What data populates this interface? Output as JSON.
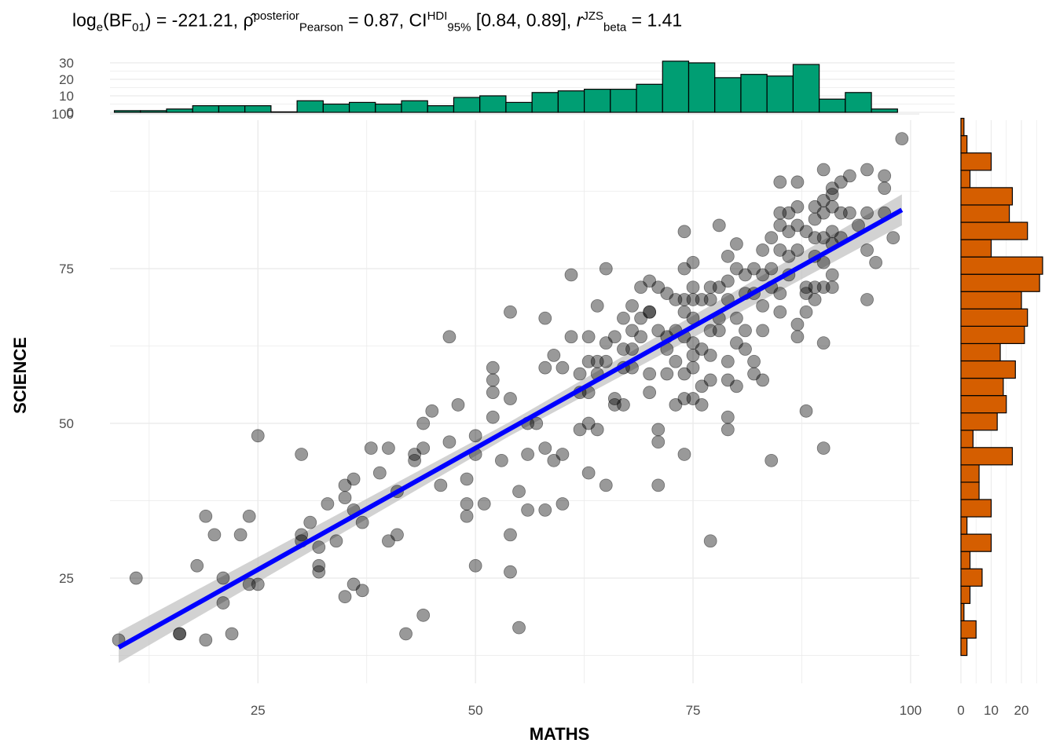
{
  "title": {
    "bf_prefix": "log",
    "bf_sub_e": "e",
    "bf_open": "(BF",
    "bf_sub_01": "01",
    "bf_close": ") = -221.21, ",
    "rho": "ρ̂",
    "rho_sup": "posterior",
    "rho_sub": "Pearson",
    "rho_val": " = 0.87, CI",
    "ci_sup": "HDI",
    "ci_sub": "95%",
    "ci_val": " [0.84, 0.89], ",
    "r": "r",
    "r_sup": "JZS",
    "r_sub": "beta",
    "r_val": " = 1.41"
  },
  "colors": {
    "points": "#000000",
    "fit_line": "#0000ff",
    "ci_band": "#bfbfbf",
    "top_hist": "#009e73",
    "right_hist": "#d55e00",
    "grid": "#ebebeb"
  },
  "chart_data": [
    {
      "type": "scatter",
      "xlabel": "MATHS",
      "ylabel": "SCIENCE",
      "xlim": [
        8,
        101
      ],
      "ylim": [
        8,
        99
      ],
      "xticks": [
        25,
        50,
        75,
        100
      ],
      "yticks": [
        25,
        50,
        75,
        100
      ],
      "tick_labels_x": [
        "25",
        "50",
        "75",
        "100"
      ],
      "tick_labels_y": [
        "25",
        "50",
        "75",
        "100"
      ],
      "grid": true,
      "fit": {
        "method": "lm",
        "x": [
          9,
          99
        ],
        "y": [
          13.8,
          84.5
        ],
        "band_half_width": 2.5
      },
      "points": [
        [
          9,
          15
        ],
        [
          11,
          25
        ],
        [
          16,
          16
        ],
        [
          16,
          16
        ],
        [
          18,
          27
        ],
        [
          19,
          35
        ],
        [
          19,
          15
        ],
        [
          20,
          32
        ],
        [
          21,
          25
        ],
        [
          21,
          21
        ],
        [
          22,
          16
        ],
        [
          23,
          32
        ],
        [
          24,
          35
        ],
        [
          24,
          24
        ],
        [
          25,
          24
        ],
        [
          25,
          48
        ],
        [
          30,
          45
        ],
        [
          30,
          32
        ],
        [
          30,
          31
        ],
        [
          31,
          34
        ],
        [
          32,
          27
        ],
        [
          32,
          26
        ],
        [
          32,
          30
        ],
        [
          33,
          37
        ],
        [
          34,
          31
        ],
        [
          35,
          38
        ],
        [
          35,
          40
        ],
        [
          35,
          22
        ],
        [
          36,
          41
        ],
        [
          36,
          24
        ],
        [
          36,
          36
        ],
        [
          37,
          34
        ],
        [
          37,
          23
        ],
        [
          38,
          46
        ],
        [
          39,
          42
        ],
        [
          40,
          46
        ],
        [
          40,
          31
        ],
        [
          41,
          39
        ],
        [
          41,
          32
        ],
        [
          42,
          16
        ],
        [
          43,
          44
        ],
        [
          43,
          45
        ],
        [
          44,
          19
        ],
        [
          44,
          50
        ],
        [
          44,
          46
        ],
        [
          45,
          52
        ],
        [
          46,
          40
        ],
        [
          47,
          47
        ],
        [
          47,
          64
        ],
        [
          48,
          53
        ],
        [
          49,
          37
        ],
        [
          49,
          35
        ],
        [
          49,
          41
        ],
        [
          50,
          45
        ],
        [
          50,
          27
        ],
        [
          50,
          48
        ],
        [
          51,
          37
        ],
        [
          52,
          59
        ],
        [
          52,
          57
        ],
        [
          52,
          55
        ],
        [
          52,
          51
        ],
        [
          53,
          44
        ],
        [
          54,
          54
        ],
        [
          54,
          32
        ],
        [
          54,
          26
        ],
        [
          54,
          68
        ],
        [
          55,
          39
        ],
        [
          55,
          17
        ],
        [
          56,
          50
        ],
        [
          56,
          45
        ],
        [
          56,
          36
        ],
        [
          57,
          50
        ],
        [
          58,
          67
        ],
        [
          58,
          59
        ],
        [
          58,
          46
        ],
        [
          58,
          36
        ],
        [
          59,
          61
        ],
        [
          59,
          44
        ],
        [
          60,
          59
        ],
        [
          60,
          45
        ],
        [
          60,
          37
        ],
        [
          61,
          74
        ],
        [
          61,
          64
        ],
        [
          62,
          58
        ],
        [
          62,
          55
        ],
        [
          62,
          49
        ],
        [
          63,
          64
        ],
        [
          63,
          60
        ],
        [
          63,
          55
        ],
        [
          63,
          50
        ],
        [
          63,
          42
        ],
        [
          64,
          69
        ],
        [
          64,
          60
        ],
        [
          64,
          58
        ],
        [
          64,
          49
        ],
        [
          65,
          75
        ],
        [
          65,
          63
        ],
        [
          65,
          60
        ],
        [
          65,
          40
        ],
        [
          66,
          64
        ],
        [
          66,
          54
        ],
        [
          66,
          53
        ],
        [
          67,
          67
        ],
        [
          67,
          62
        ],
        [
          67,
          53
        ],
        [
          67,
          59
        ],
        [
          68,
          69
        ],
        [
          68,
          65
        ],
        [
          68,
          62
        ],
        [
          68,
          59
        ],
        [
          69,
          72
        ],
        [
          69,
          67
        ],
        [
          69,
          64
        ],
        [
          70,
          73
        ],
        [
          70,
          68
        ],
        [
          70,
          68
        ],
        [
          70,
          58
        ],
        [
          70,
          55
        ],
        [
          71,
          72
        ],
        [
          71,
          65
        ],
        [
          71,
          49
        ],
        [
          71,
          47
        ],
        [
          71,
          40
        ],
        [
          72,
          71
        ],
        [
          72,
          64
        ],
        [
          72,
          62
        ],
        [
          72,
          58
        ],
        [
          73,
          70
        ],
        [
          73,
          65
        ],
        [
          73,
          60
        ],
        [
          73,
          53
        ],
        [
          74,
          81
        ],
        [
          74,
          75
        ],
        [
          74,
          70
        ],
        [
          74,
          68
        ],
        [
          74,
          64
        ],
        [
          74,
          58
        ],
        [
          74,
          54
        ],
        [
          74,
          45
        ],
        [
          75,
          76
        ],
        [
          75,
          72
        ],
        [
          75,
          70
        ],
        [
          75,
          67
        ],
        [
          75,
          63
        ],
        [
          75,
          61
        ],
        [
          75,
          54
        ],
        [
          75,
          59
        ],
        [
          76,
          70
        ],
        [
          76,
          62
        ],
        [
          76,
          56
        ],
        [
          76,
          53
        ],
        [
          77,
          72
        ],
        [
          77,
          70
        ],
        [
          77,
          65
        ],
        [
          77,
          61
        ],
        [
          77,
          57
        ],
        [
          77,
          31
        ],
        [
          78,
          82
        ],
        [
          78,
          72
        ],
        [
          78,
          67
        ],
        [
          78,
          65
        ],
        [
          79,
          77
        ],
        [
          79,
          73
        ],
        [
          79,
          70
        ],
        [
          79,
          60
        ],
        [
          79,
          57
        ],
        [
          79,
          51
        ],
        [
          79,
          49
        ],
        [
          80,
          79
        ],
        [
          80,
          75
        ],
        [
          80,
          67
        ],
        [
          80,
          63
        ],
        [
          80,
          56
        ],
        [
          81,
          74
        ],
        [
          81,
          71
        ],
        [
          81,
          65
        ],
        [
          81,
          62
        ],
        [
          82,
          75
        ],
        [
          82,
          71
        ],
        [
          82,
          60
        ],
        [
          82,
          58
        ],
        [
          83,
          78
        ],
        [
          83,
          74
        ],
        [
          83,
          69
        ],
        [
          83,
          65
        ],
        [
          83,
          57
        ],
        [
          84,
          80
        ],
        [
          84,
          75
        ],
        [
          84,
          72
        ],
        [
          84,
          44
        ],
        [
          85,
          89
        ],
        [
          85,
          84
        ],
        [
          85,
          82
        ],
        [
          85,
          78
        ],
        [
          85,
          71
        ],
        [
          85,
          68
        ],
        [
          86,
          84
        ],
        [
          86,
          81
        ],
        [
          86,
          77
        ],
        [
          86,
          74
        ],
        [
          87,
          89
        ],
        [
          87,
          85
        ],
        [
          87,
          82
        ],
        [
          87,
          78
        ],
        [
          87,
          66
        ],
        [
          87,
          64
        ],
        [
          88,
          81
        ],
        [
          88,
          72
        ],
        [
          88,
          71
        ],
        [
          88,
          68
        ],
        [
          88,
          52
        ],
        [
          89,
          85
        ],
        [
          89,
          83
        ],
        [
          89,
          80
        ],
        [
          89,
          77
        ],
        [
          89,
          72
        ],
        [
          89,
          70
        ],
        [
          90,
          91
        ],
        [
          90,
          86
        ],
        [
          90,
          84
        ],
        [
          90,
          80
        ],
        [
          90,
          76
        ],
        [
          90,
          72
        ],
        [
          90,
          63
        ],
        [
          90,
          46
        ],
        [
          91,
          88
        ],
        [
          91,
          87
        ],
        [
          91,
          85
        ],
        [
          91,
          81
        ],
        [
          91,
          79
        ],
        [
          91,
          74
        ],
        [
          91,
          72
        ],
        [
          92,
          89
        ],
        [
          92,
          84
        ],
        [
          92,
          80
        ],
        [
          93,
          90
        ],
        [
          93,
          84
        ],
        [
          94,
          82
        ],
        [
          95,
          91
        ],
        [
          95,
          84
        ],
        [
          95,
          78
        ],
        [
          95,
          70
        ],
        [
          96,
          76
        ],
        [
          97,
          90
        ],
        [
          97,
          88
        ],
        [
          97,
          84
        ],
        [
          98,
          80
        ],
        [
          99,
          96
        ]
      ]
    },
    {
      "type": "bar",
      "name": "top-histogram",
      "x_edges_start": 8.5,
      "bin_width": 3,
      "values": [
        1,
        1,
        2,
        4,
        4,
        4,
        0,
        7,
        5,
        6,
        5,
        7,
        4,
        9,
        10,
        6,
        12,
        13,
        14,
        14,
        17,
        31,
        30,
        21,
        23,
        22,
        29,
        8,
        12,
        2
      ],
      "ylim": [
        0,
        31
      ],
      "yticks": [
        0,
        10,
        20,
        30
      ],
      "tick_labels": [
        "0",
        "10",
        "20",
        "30"
      ]
    },
    {
      "type": "bar",
      "name": "right-histogram",
      "orientation": "horizontal",
      "y_edges_start": 12.5,
      "bin_width": 2.8,
      "values": [
        2,
        5,
        1,
        3,
        7,
        3,
        10,
        2,
        10,
        6,
        6,
        17,
        4,
        12,
        15,
        14,
        18,
        13,
        21,
        22,
        20,
        26,
        27,
        10,
        22,
        16,
        17,
        3,
        10,
        2,
        1
      ],
      "xlim": [
        0,
        27
      ],
      "xticks": [
        0,
        10,
        20
      ],
      "tick_labels": [
        "0",
        "10",
        "20"
      ]
    }
  ]
}
